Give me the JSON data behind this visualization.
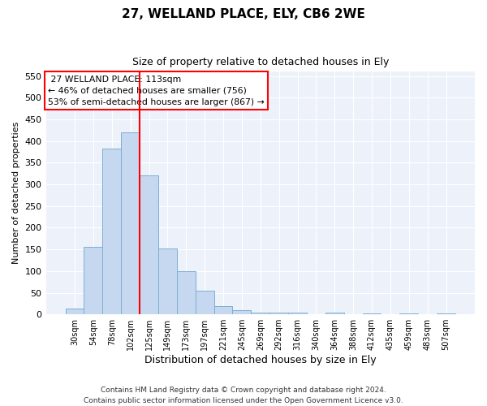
{
  "title": "27, WELLAND PLACE, ELY, CB6 2WE",
  "subtitle": "Size of property relative to detached houses in Ely",
  "xlabel": "Distribution of detached houses by size in Ely",
  "ylabel": "Number of detached properties",
  "categories": [
    "30sqm",
    "54sqm",
    "78sqm",
    "102sqm",
    "125sqm",
    "149sqm",
    "173sqm",
    "197sqm",
    "221sqm",
    "245sqm",
    "269sqm",
    "292sqm",
    "316sqm",
    "340sqm",
    "364sqm",
    "388sqm",
    "412sqm",
    "435sqm",
    "459sqm",
    "483sqm",
    "507sqm"
  ],
  "values": [
    13,
    155,
    383,
    421,
    321,
    152,
    100,
    55,
    19,
    10,
    5,
    4,
    5,
    0,
    4,
    0,
    3,
    0,
    3,
    0,
    3
  ],
  "bar_color": "#c5d8f0",
  "bar_edge_color": "#7bafd4",
  "red_line_x": 3.5,
  "red_line_label": "27 WELLAND PLACE: 113sqm",
  "smaller_pct": "46% of detached houses are smaller (756)",
  "larger_pct": "53% of semi-detached houses are larger (867)",
  "ylim": [
    0,
    560
  ],
  "yticks": [
    0,
    50,
    100,
    150,
    200,
    250,
    300,
    350,
    400,
    450,
    500,
    550
  ],
  "footnote": "Contains HM Land Registry data © Crown copyright and database right 2024.\nContains public sector information licensed under the Open Government Licence v3.0.",
  "bg_color": "#edf2fa"
}
